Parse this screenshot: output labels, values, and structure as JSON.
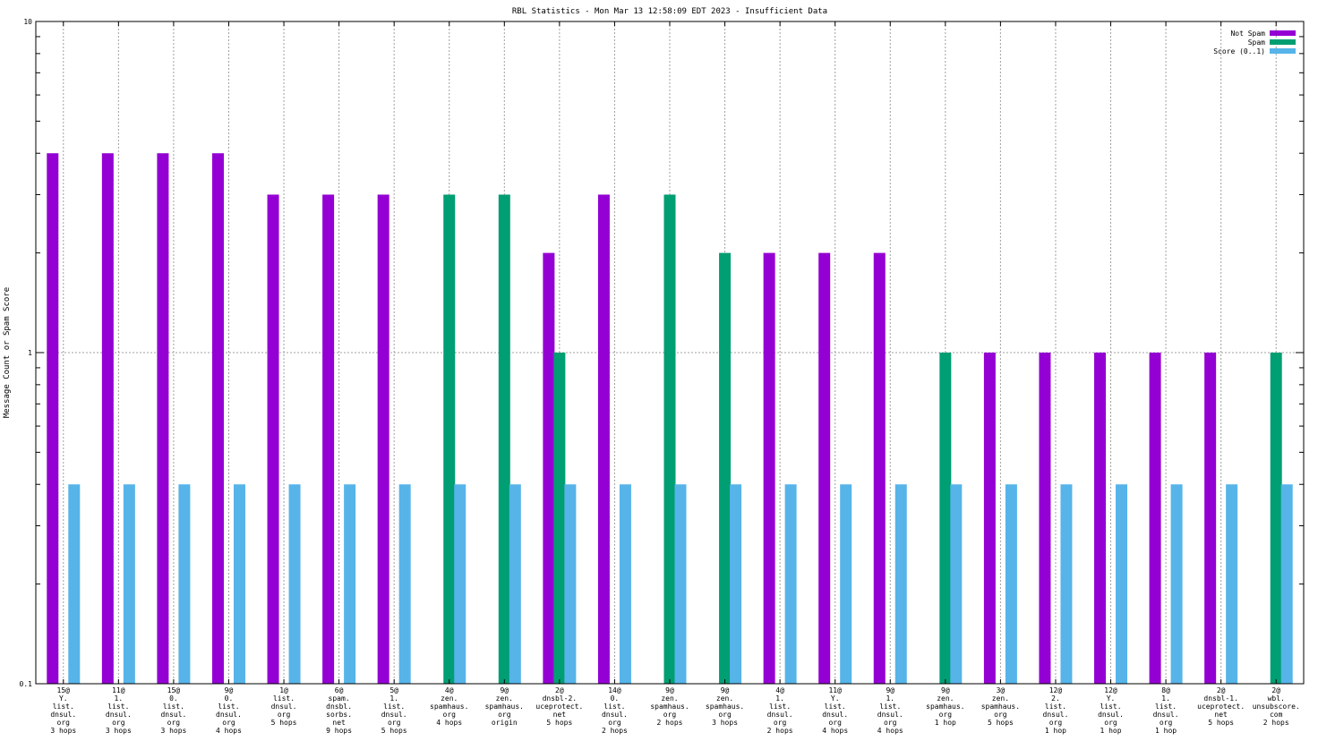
{
  "chart_data": {
    "type": "bar",
    "title": "RBL Statistics - Mon Mar 13 12:58:09 EDT 2023 - Insufficient Data",
    "xlabel": "",
    "ylabel": "Message Count or Spam Score",
    "yscale": "log",
    "ylim": [
      0.1,
      10
    ],
    "yticks": [
      {
        "value": 10,
        "label": "10"
      },
      {
        "value": 1,
        "label": "1"
      },
      {
        "value": 0.1,
        "label": "0.1"
      }
    ],
    "grid": true,
    "legend_position": "top-right",
    "categories": [
      [
        "15@",
        "Y.",
        "list.",
        "dnsul.",
        "org",
        "3 hops"
      ],
      [
        "11@",
        "1.",
        "list.",
        "dnsul.",
        "org",
        "3 hops"
      ],
      [
        "15@",
        "0.",
        "list.",
        "dnsul.",
        "org",
        "3 hops"
      ],
      [
        "9@",
        "0.",
        "list.",
        "dnsul.",
        "org",
        "4 hops"
      ],
      [
        "1@",
        "list.",
        "dnsul.",
        "org",
        "5 hops"
      ],
      [
        "6@",
        "spam.",
        "dnsbl.",
        "sorbs.",
        "net",
        "9 hops"
      ],
      [
        "5@",
        "1.",
        "list.",
        "dnsul.",
        "org",
        "5 hops"
      ],
      [
        "4@",
        "zen.",
        "spamhaus.",
        "org",
        "4 hops"
      ],
      [
        "9@",
        "zen.",
        "spamhaus.",
        "org",
        "origin"
      ],
      [
        "2@",
        "dnsbl-2.",
        "uceprotect.",
        "net",
        "5 hops"
      ],
      [
        "14@",
        "0.",
        "list.",
        "dnsul.",
        "org",
        "2 hops"
      ],
      [
        "9@",
        "zen.",
        "spamhaus.",
        "org",
        "2 hops"
      ],
      [
        "9@",
        "zen.",
        "spamhaus.",
        "org",
        "3 hops"
      ],
      [
        "4@",
        "1.",
        "list.",
        "dnsul.",
        "org",
        "2 hops"
      ],
      [
        "11@",
        "Y.",
        "list.",
        "dnsul.",
        "org",
        "4 hops"
      ],
      [
        "9@",
        "1.",
        "list.",
        "dnsul.",
        "org",
        "4 hops"
      ],
      [
        "9@",
        "zen.",
        "spamhaus.",
        "org",
        "1 hop"
      ],
      [
        "3@",
        "zen.",
        "spamhaus.",
        "org",
        "5 hops"
      ],
      [
        "12@",
        "2.",
        "list.",
        "dnsul.",
        "org",
        "1 hop"
      ],
      [
        "12@",
        "Y.",
        "list.",
        "dnsul.",
        "org",
        "1 hop"
      ],
      [
        "8@",
        "1.",
        "list.",
        "dnsul.",
        "org",
        "1 hop"
      ],
      [
        "2@",
        "dnsbl-1.",
        "uceprotect.",
        "net",
        "5 hops"
      ],
      [
        "2@",
        "wbl.",
        "unsubscore.",
        "com",
        "2 hops"
      ]
    ],
    "series": [
      {
        "name": "Not Spam",
        "color": "#9400d3",
        "values": [
          4,
          4,
          4,
          4,
          3,
          3,
          3,
          null,
          null,
          2,
          3,
          null,
          null,
          2,
          2,
          2,
          null,
          1,
          1,
          1,
          1,
          1,
          null
        ]
      },
      {
        "name": "Spam",
        "color": "#009e73",
        "values": [
          null,
          null,
          null,
          null,
          null,
          null,
          null,
          3,
          3,
          1,
          null,
          3,
          2,
          null,
          null,
          null,
          1,
          null,
          null,
          null,
          null,
          null,
          1
        ]
      },
      {
        "name": "Score (0..1)",
        "color": "#56b4e9",
        "values": [
          0.4,
          0.4,
          0.4,
          0.4,
          0.4,
          0.4,
          0.4,
          0.4,
          0.4,
          0.4,
          0.4,
          0.4,
          0.4,
          0.4,
          0.4,
          0.4,
          0.4,
          0.4,
          0.4,
          0.4,
          0.4,
          0.4,
          0.4
        ]
      }
    ]
  }
}
